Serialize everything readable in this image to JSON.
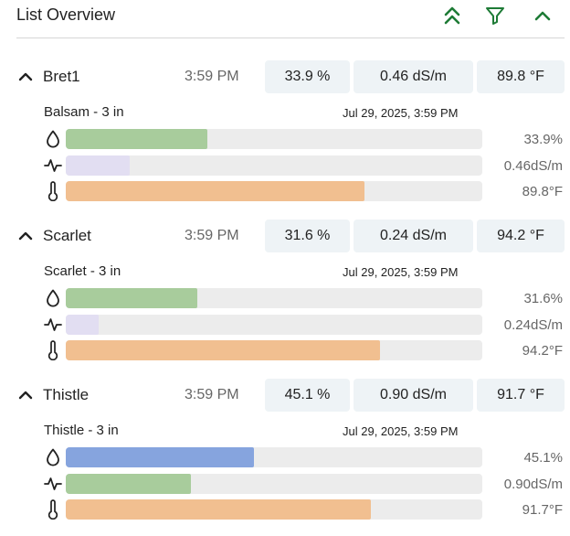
{
  "header": {
    "title": "List Overview"
  },
  "colors": {
    "accent": "#1e7b36",
    "moisture_green": "#a8cc9c",
    "moisture_blue": "#86a4de",
    "ec_lavender": "#e2def2",
    "ec_green": "#a8cc9c",
    "temperature": "#f1bf90",
    "track": "#ececec",
    "chip_bg": "#eef3f6"
  },
  "icons": {
    "collapse_all": "double-chevron-up-icon",
    "filter": "filter-icon",
    "collapse_panel": "chevron-up-icon",
    "moisture": "droplet-icon",
    "ec": "pulse-icon",
    "temperature": "thermometer-icon"
  },
  "sections": [
    {
      "name": "Bret1",
      "time": "3:59 PM",
      "chips": [
        "33.9 %",
        "0.46 dS/m",
        "89.8 °F"
      ],
      "plant": "Balsam - 3 in",
      "timestamp": "Jul 29, 2025, 3:59 PM",
      "moisture": {
        "text": "33.9%",
        "fraction": 0.339,
        "color": "#a8cc9c"
      },
      "ec": {
        "text": "0.46dS/m",
        "fraction": 0.153,
        "color": "#e2def2"
      },
      "temperature": {
        "text": "89.8°F",
        "fraction": 0.717,
        "color": "#f1bf90"
      }
    },
    {
      "name": "Scarlet",
      "time": "3:59 PM",
      "chips": [
        "31.6 %",
        "0.24 dS/m",
        "94.2 °F"
      ],
      "plant": "Scarlet - 3 in",
      "timestamp": "Jul 29, 2025, 3:59 PM",
      "moisture": {
        "text": "31.6%",
        "fraction": 0.316,
        "color": "#a8cc9c"
      },
      "ec": {
        "text": "0.24dS/m",
        "fraction": 0.08,
        "color": "#e2def2"
      },
      "temperature": {
        "text": "94.2°F",
        "fraction": 0.754,
        "color": "#f1bf90"
      }
    },
    {
      "name": "Thistle",
      "time": "3:59 PM",
      "chips": [
        "45.1 %",
        "0.90 dS/m",
        "91.7 °F"
      ],
      "plant": "Thistle - 3 in",
      "timestamp": "Jul 29, 2025, 3:59 PM",
      "moisture": {
        "text": "45.1%",
        "fraction": 0.451,
        "color": "#86a4de"
      },
      "ec": {
        "text": "0.90dS/m",
        "fraction": 0.3,
        "color": "#a8cc9c"
      },
      "temperature": {
        "text": "91.7°F",
        "fraction": 0.733,
        "color": "#f1bf90"
      }
    }
  ]
}
